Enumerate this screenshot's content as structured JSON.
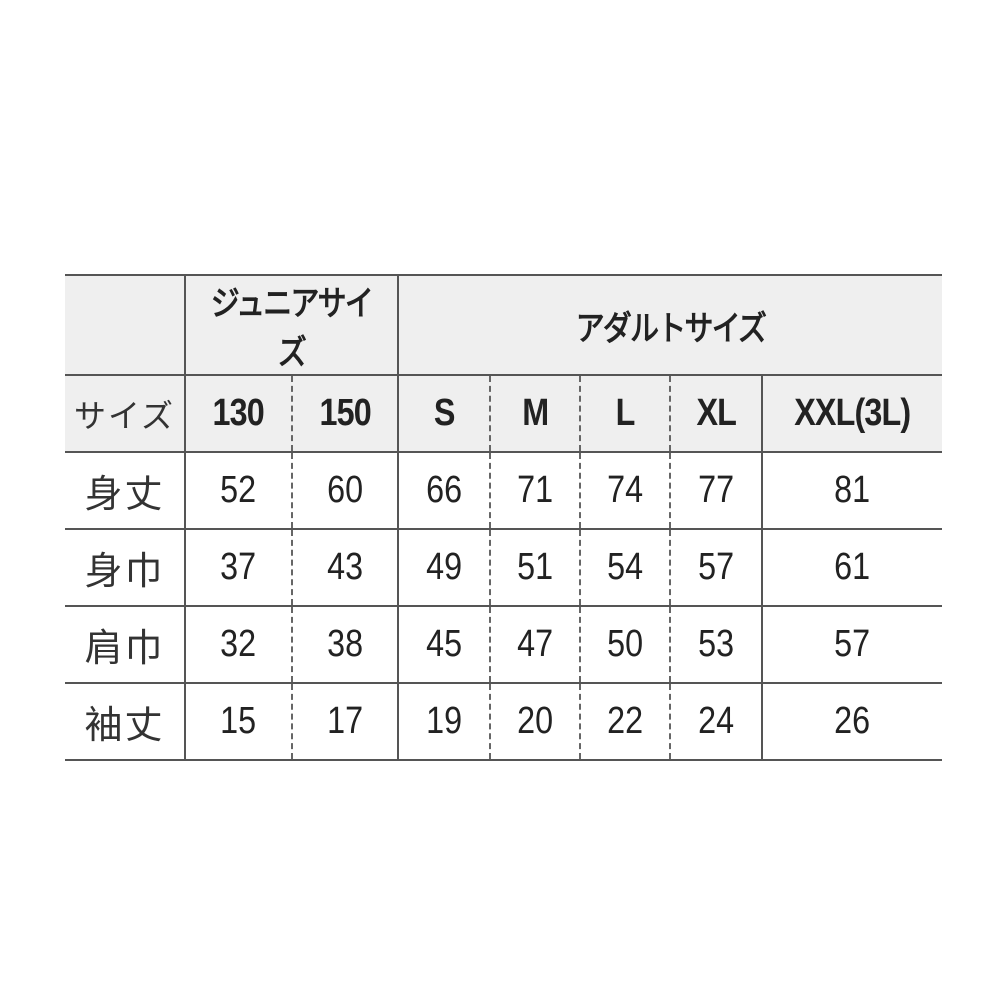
{
  "table": {
    "group_headers": {
      "junior": "ジュニアサイズ",
      "adult": "アダルトサイズ"
    },
    "size_label": "サイズ",
    "sizes": [
      "130",
      "150",
      "S",
      "M",
      "L",
      "XL",
      "XXL(3L)"
    ],
    "rows": [
      {
        "label": "身丈",
        "values": [
          "52",
          "60",
          "66",
          "71",
          "74",
          "77",
          "81"
        ]
      },
      {
        "label": "身巾",
        "values": [
          "37",
          "43",
          "49",
          "51",
          "54",
          "57",
          "61"
        ]
      },
      {
        "label": "肩巾",
        "values": [
          "32",
          "38",
          "45",
          "47",
          "50",
          "53",
          "57"
        ]
      },
      {
        "label": "袖丈",
        "values": [
          "15",
          "17",
          "19",
          "20",
          "22",
          "24",
          "26"
        ]
      }
    ]
  },
  "colors": {
    "header_bg": "#efefef",
    "line": "#555555"
  }
}
